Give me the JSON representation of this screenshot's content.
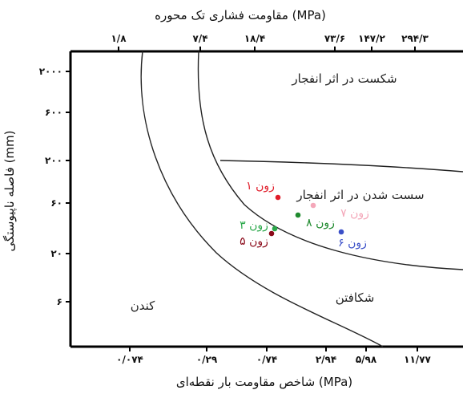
{
  "chart_data": {
    "type": "scatter",
    "title": "",
    "top_axis": {
      "label": "مقاومت فشاری تک محوره (MPa)",
      "ticks": [
        "۱/۸",
        "۷/۴",
        "۱۸/۴",
        "۷۳/۶",
        "۱۴۷/۲",
        "۲۹۴/۳"
      ]
    },
    "bottom_axis": {
      "label": "شاخص مقاومت بار نقطه‌ای (MPa)",
      "ticks": [
        "۰/۰۷۴",
        "۰/۲۹",
        "۰/۷۴",
        "۲/۹۴",
        "۵/۹۸",
        "۱۱/۷۷"
      ]
    },
    "left_axis": {
      "label": "فاصله ناپیوستگی (mm)",
      "ticks": [
        "۲۰۰۰",
        "۶۰۰",
        "۲۰۰",
        "۶۰",
        "۲۰",
        "۶"
      ]
    },
    "regions": [
      {
        "name": "blast-fracture",
        "label": "شکست در اثر انفجار"
      },
      {
        "name": "blast-loosening",
        "label": "سست شدن در اثر انفجار"
      },
      {
        "name": "ripping",
        "label": "شکافتن"
      },
      {
        "name": "digging",
        "label": "کندن"
      }
    ],
    "points": [
      {
        "label": "زون ۱",
        "color": "#e11d2a"
      },
      {
        "label": "زون ۷",
        "color": "#f4a7b9"
      },
      {
        "label": "زون ۸",
        "color": "#1f8a2e"
      },
      {
        "label": "زون ۳",
        "color": "#2aa84a"
      },
      {
        "label": "زون ۵",
        "color": "#8b0a1a"
      },
      {
        "label": "زون ۶",
        "color": "#3a4fc8"
      }
    ],
    "grid": false,
    "legend": "none"
  }
}
